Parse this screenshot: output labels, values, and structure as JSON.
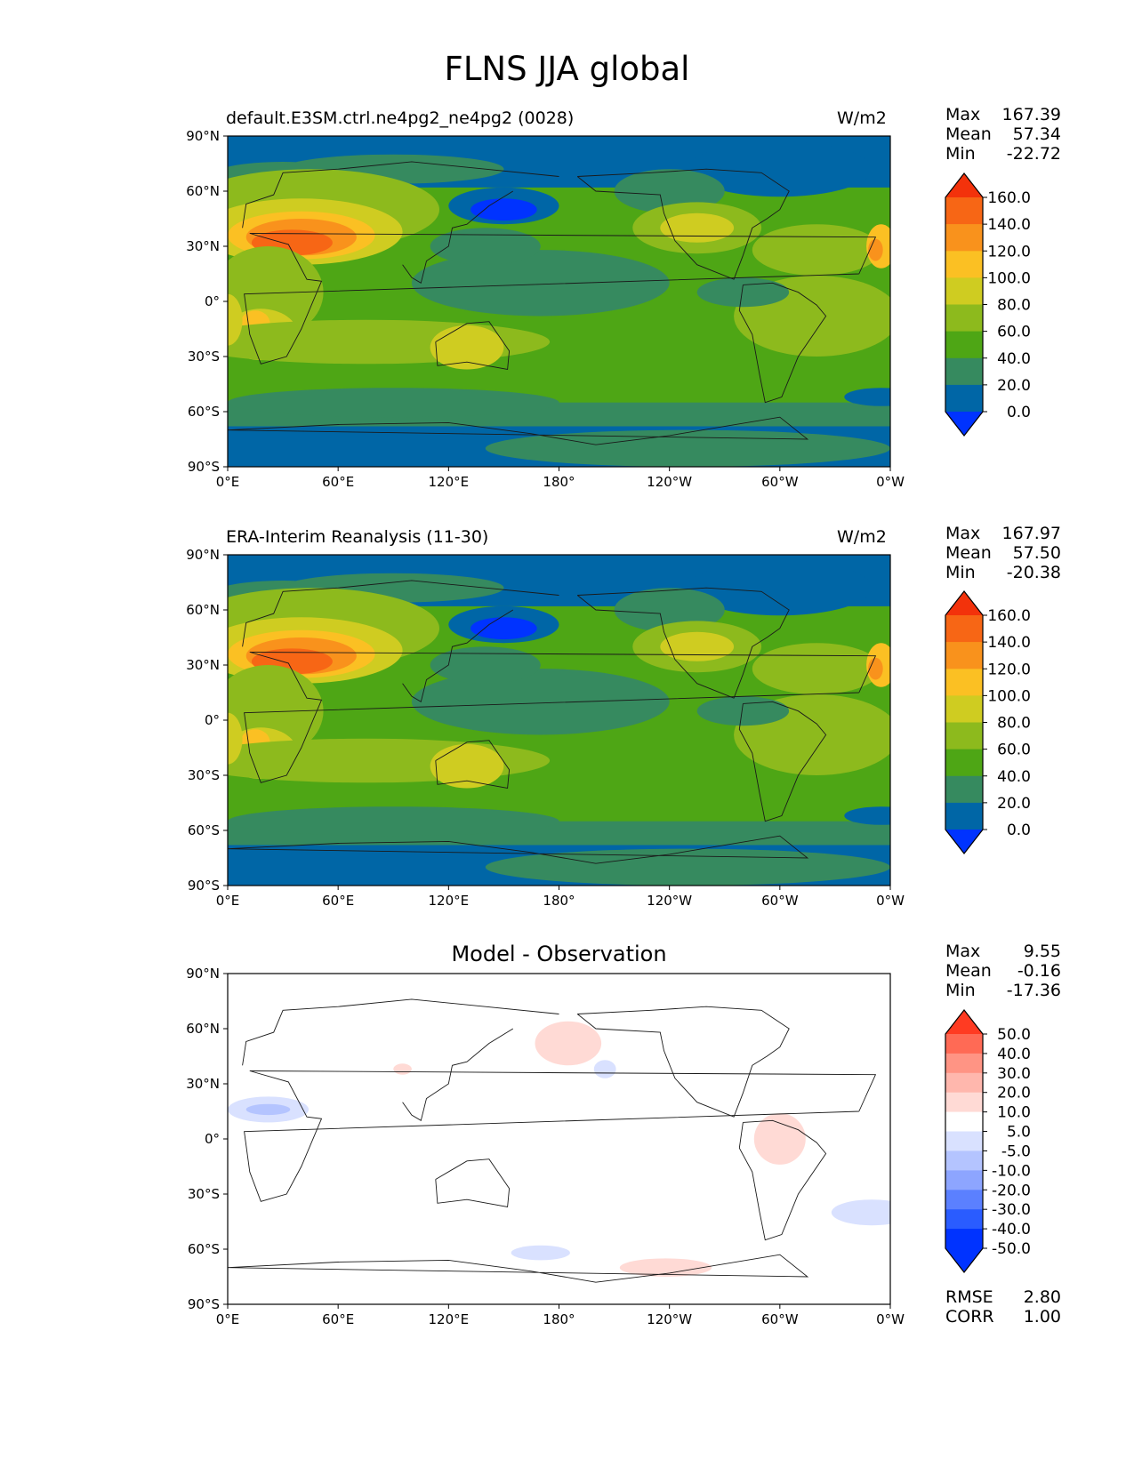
{
  "title": "FLNS JJA global",
  "colors": {
    "ref_levels": [
      "#0033ff",
      "#0066a6",
      "#368a5f",
      "#4ea615",
      "#8dba1d",
      "#cfcc21",
      "#fbc023",
      "#f9921c",
      "#f76615",
      "#f3320b"
    ],
    "diff_levels": [
      "#0033ff",
      "#2a5cff",
      "#5b80ff",
      "#8da5ff",
      "#b4c4ff",
      "#d9e1ff",
      "#ffffff",
      "#ffdad5",
      "#ffb7ad",
      "#ff9484",
      "#ff6a55",
      "#ff3b22"
    ]
  },
  "panels": [
    {
      "label_left": "default.E3SM.ctrl.ne4pg2_ne4pg2 (0028)",
      "label_right": "W/m2",
      "stats": [
        {
          "name": "Max",
          "value": "167.39"
        },
        {
          "name": "Mean",
          "value": "57.34"
        },
        {
          "name": "Min",
          "value": "-22.72"
        }
      ],
      "colorbar_ticks": [
        "160.0",
        "140.0",
        "120.0",
        "100.0",
        "80.0",
        "60.0",
        "40.0",
        "20.0",
        "0.0"
      ]
    },
    {
      "label_left": "ERA-Interim Reanalysis (11-30)",
      "label_right": "W/m2",
      "stats": [
        {
          "name": "Max",
          "value": "167.97"
        },
        {
          "name": "Mean",
          "value": "57.50"
        },
        {
          "name": "Min",
          "value": "-20.38"
        }
      ],
      "colorbar_ticks": [
        "160.0",
        "140.0",
        "120.0",
        "100.0",
        "80.0",
        "60.0",
        "40.0",
        "20.0",
        "0.0"
      ]
    },
    {
      "title": "Model - Observation",
      "stats": [
        {
          "name": "Max",
          "value": "9.55"
        },
        {
          "name": "Mean",
          "value": "-0.16"
        },
        {
          "name": "Min",
          "value": "-17.36"
        }
      ],
      "colorbar_ticks": [
        "50.0",
        "40.0",
        "30.0",
        "20.0",
        "10.0",
        "5.0",
        "-5.0",
        "-10.0",
        "-20.0",
        "-30.0",
        "-40.0",
        "-50.0"
      ],
      "footer_stats": [
        {
          "name": "RMSE",
          "value": "2.80"
        },
        {
          "name": "CORR",
          "value": "1.00"
        }
      ]
    }
  ],
  "axes": {
    "x_ticks": [
      "0°E",
      "60°E",
      "120°E",
      "180°",
      "120°W",
      "60°W",
      "0°W"
    ],
    "y_ticks": [
      "90°N",
      "60°N",
      "30°N",
      "0°",
      "30°S",
      "60°S",
      "90°S"
    ]
  },
  "chart_data": [
    {
      "type": "heatmap",
      "label": "default.E3SM.ctrl.ne4pg2_ne4pg2 (0028)",
      "units": "W/m2",
      "levels": [
        0,
        20,
        40,
        60,
        80,
        100,
        120,
        140,
        160
      ],
      "x_range": [
        0,
        360
      ],
      "y_range": [
        -90,
        90
      ],
      "stats": {
        "max": 167.39,
        "mean": 57.34,
        "min": -22.72
      }
    },
    {
      "type": "heatmap",
      "label": "ERA-Interim Reanalysis (11-30)",
      "units": "W/m2",
      "levels": [
        0,
        20,
        40,
        60,
        80,
        100,
        120,
        140,
        160
      ],
      "x_range": [
        0,
        360
      ],
      "y_range": [
        -90,
        90
      ],
      "stats": {
        "max": 167.97,
        "mean": 57.5,
        "min": -20.38
      }
    },
    {
      "type": "heatmap",
      "label": "Model - Observation",
      "levels": [
        -50,
        -40,
        -30,
        -20,
        -10,
        -5,
        5,
        10,
        20,
        30,
        40,
        50
      ],
      "x_range": [
        0,
        360
      ],
      "y_range": [
        -90,
        90
      ],
      "stats": {
        "max": 9.55,
        "mean": -0.16,
        "min": -17.36,
        "rmse": 2.8,
        "corr": 1.0
      }
    }
  ]
}
